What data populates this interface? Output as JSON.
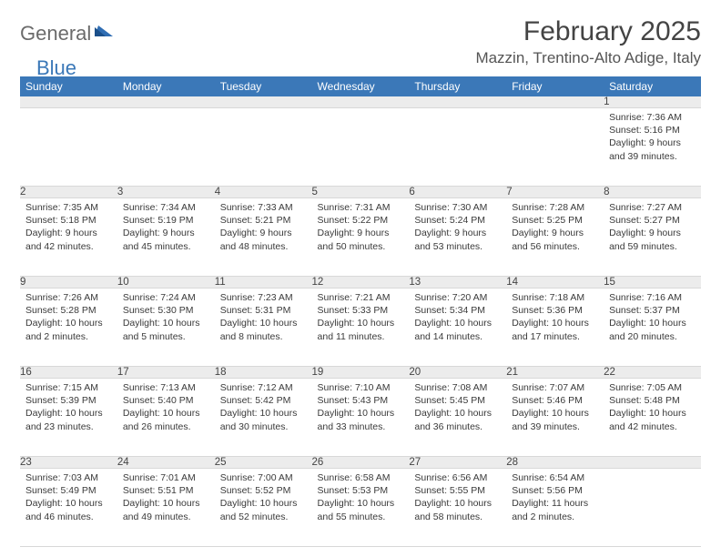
{
  "logo": {
    "text1": "General",
    "text2": "Blue"
  },
  "title": "February 2025",
  "location": "Mazzin, Trentino-Alto Adige, Italy",
  "colors": {
    "header_bg": "#3b78b8",
    "header_fg": "#ffffff",
    "daynum_bg": "#ececec",
    "text": "#3a3a3a",
    "rule": "#d8d8d8"
  },
  "days_of_week": [
    "Sunday",
    "Monday",
    "Tuesday",
    "Wednesday",
    "Thursday",
    "Friday",
    "Saturday"
  ],
  "weeks": [
    [
      null,
      null,
      null,
      null,
      null,
      null,
      {
        "n": "1",
        "sunrise": "7:36 AM",
        "sunset": "5:16 PM",
        "daylight": "9 hours and 39 minutes."
      }
    ],
    [
      {
        "n": "2",
        "sunrise": "7:35 AM",
        "sunset": "5:18 PM",
        "daylight": "9 hours and 42 minutes."
      },
      {
        "n": "3",
        "sunrise": "7:34 AM",
        "sunset": "5:19 PM",
        "daylight": "9 hours and 45 minutes."
      },
      {
        "n": "4",
        "sunrise": "7:33 AM",
        "sunset": "5:21 PM",
        "daylight": "9 hours and 48 minutes."
      },
      {
        "n": "5",
        "sunrise": "7:31 AM",
        "sunset": "5:22 PM",
        "daylight": "9 hours and 50 minutes."
      },
      {
        "n": "6",
        "sunrise": "7:30 AM",
        "sunset": "5:24 PM",
        "daylight": "9 hours and 53 minutes."
      },
      {
        "n": "7",
        "sunrise": "7:28 AM",
        "sunset": "5:25 PM",
        "daylight": "9 hours and 56 minutes."
      },
      {
        "n": "8",
        "sunrise": "7:27 AM",
        "sunset": "5:27 PM",
        "daylight": "9 hours and 59 minutes."
      }
    ],
    [
      {
        "n": "9",
        "sunrise": "7:26 AM",
        "sunset": "5:28 PM",
        "daylight": "10 hours and 2 minutes."
      },
      {
        "n": "10",
        "sunrise": "7:24 AM",
        "sunset": "5:30 PM",
        "daylight": "10 hours and 5 minutes."
      },
      {
        "n": "11",
        "sunrise": "7:23 AM",
        "sunset": "5:31 PM",
        "daylight": "10 hours and 8 minutes."
      },
      {
        "n": "12",
        "sunrise": "7:21 AM",
        "sunset": "5:33 PM",
        "daylight": "10 hours and 11 minutes."
      },
      {
        "n": "13",
        "sunrise": "7:20 AM",
        "sunset": "5:34 PM",
        "daylight": "10 hours and 14 minutes."
      },
      {
        "n": "14",
        "sunrise": "7:18 AM",
        "sunset": "5:36 PM",
        "daylight": "10 hours and 17 minutes."
      },
      {
        "n": "15",
        "sunrise": "7:16 AM",
        "sunset": "5:37 PM",
        "daylight": "10 hours and 20 minutes."
      }
    ],
    [
      {
        "n": "16",
        "sunrise": "7:15 AM",
        "sunset": "5:39 PM",
        "daylight": "10 hours and 23 minutes."
      },
      {
        "n": "17",
        "sunrise": "7:13 AM",
        "sunset": "5:40 PM",
        "daylight": "10 hours and 26 minutes."
      },
      {
        "n": "18",
        "sunrise": "7:12 AM",
        "sunset": "5:42 PM",
        "daylight": "10 hours and 30 minutes."
      },
      {
        "n": "19",
        "sunrise": "7:10 AM",
        "sunset": "5:43 PM",
        "daylight": "10 hours and 33 minutes."
      },
      {
        "n": "20",
        "sunrise": "7:08 AM",
        "sunset": "5:45 PM",
        "daylight": "10 hours and 36 minutes."
      },
      {
        "n": "21",
        "sunrise": "7:07 AM",
        "sunset": "5:46 PM",
        "daylight": "10 hours and 39 minutes."
      },
      {
        "n": "22",
        "sunrise": "7:05 AM",
        "sunset": "5:48 PM",
        "daylight": "10 hours and 42 minutes."
      }
    ],
    [
      {
        "n": "23",
        "sunrise": "7:03 AM",
        "sunset": "5:49 PM",
        "daylight": "10 hours and 46 minutes."
      },
      {
        "n": "24",
        "sunrise": "7:01 AM",
        "sunset": "5:51 PM",
        "daylight": "10 hours and 49 minutes."
      },
      {
        "n": "25",
        "sunrise": "7:00 AM",
        "sunset": "5:52 PM",
        "daylight": "10 hours and 52 minutes."
      },
      {
        "n": "26",
        "sunrise": "6:58 AM",
        "sunset": "5:53 PM",
        "daylight": "10 hours and 55 minutes."
      },
      {
        "n": "27",
        "sunrise": "6:56 AM",
        "sunset": "5:55 PM",
        "daylight": "10 hours and 58 minutes."
      },
      {
        "n": "28",
        "sunrise": "6:54 AM",
        "sunset": "5:56 PM",
        "daylight": "11 hours and 2 minutes."
      },
      null
    ]
  ],
  "labels": {
    "sunrise": "Sunrise: ",
    "sunset": "Sunset: ",
    "daylight": "Daylight: "
  }
}
